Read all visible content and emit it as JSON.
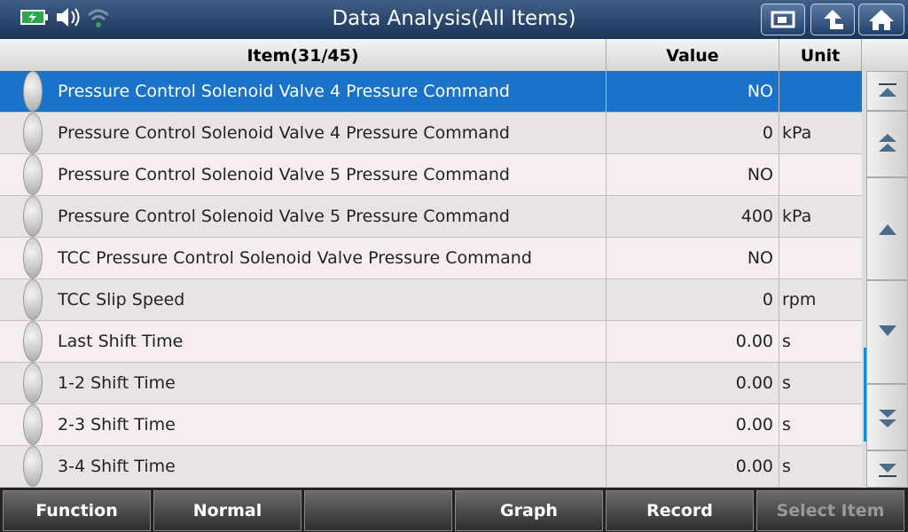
{
  "header": {
    "title": "Data Analysis(All Items)"
  },
  "table": {
    "columns": [
      "Item(31/45)",
      "Value",
      "Unit"
    ],
    "rows": [
      {
        "item": "Pressure Control Solenoid Valve 4 Pressure Command",
        "value": "NO"
      },
      {
        "item": "Pressure Control Solenoid Valve 4 Pressure Command",
        "value": "0",
        "unit": "kPa"
      },
      {
        "item": "Pressure Control Solenoid Valve 5 Pressure Command",
        "value": "NO"
      },
      {
        "item": "Pressure Control Solenoid Valve 5 Pressure Command",
        "value": "400",
        "unit": "kPa"
      },
      {
        "item": "TCC Pressure Control Solenoid Valve Pressure Command",
        "value": "NO"
      },
      {
        "item": "TCC Slip Speed",
        "value": "0",
        "unit": "rpm"
      },
      {
        "item": "Last Shift Time",
        "value": "0.00",
        "unit": "s"
      },
      {
        "item": "1-2 Shift Time",
        "value": "0.00",
        "unit": "s"
      },
      {
        "item": "2-3 Shift Time",
        "value": "0.00",
        "unit": "s"
      },
      {
        "item": "3-4 Shift Time",
        "value": "0.00",
        "unit": "s"
      }
    ]
  },
  "toolbar": {
    "buttons": [
      "Function",
      "Normal",
      "Graph",
      "Record",
      "Select Item"
    ]
  }
}
